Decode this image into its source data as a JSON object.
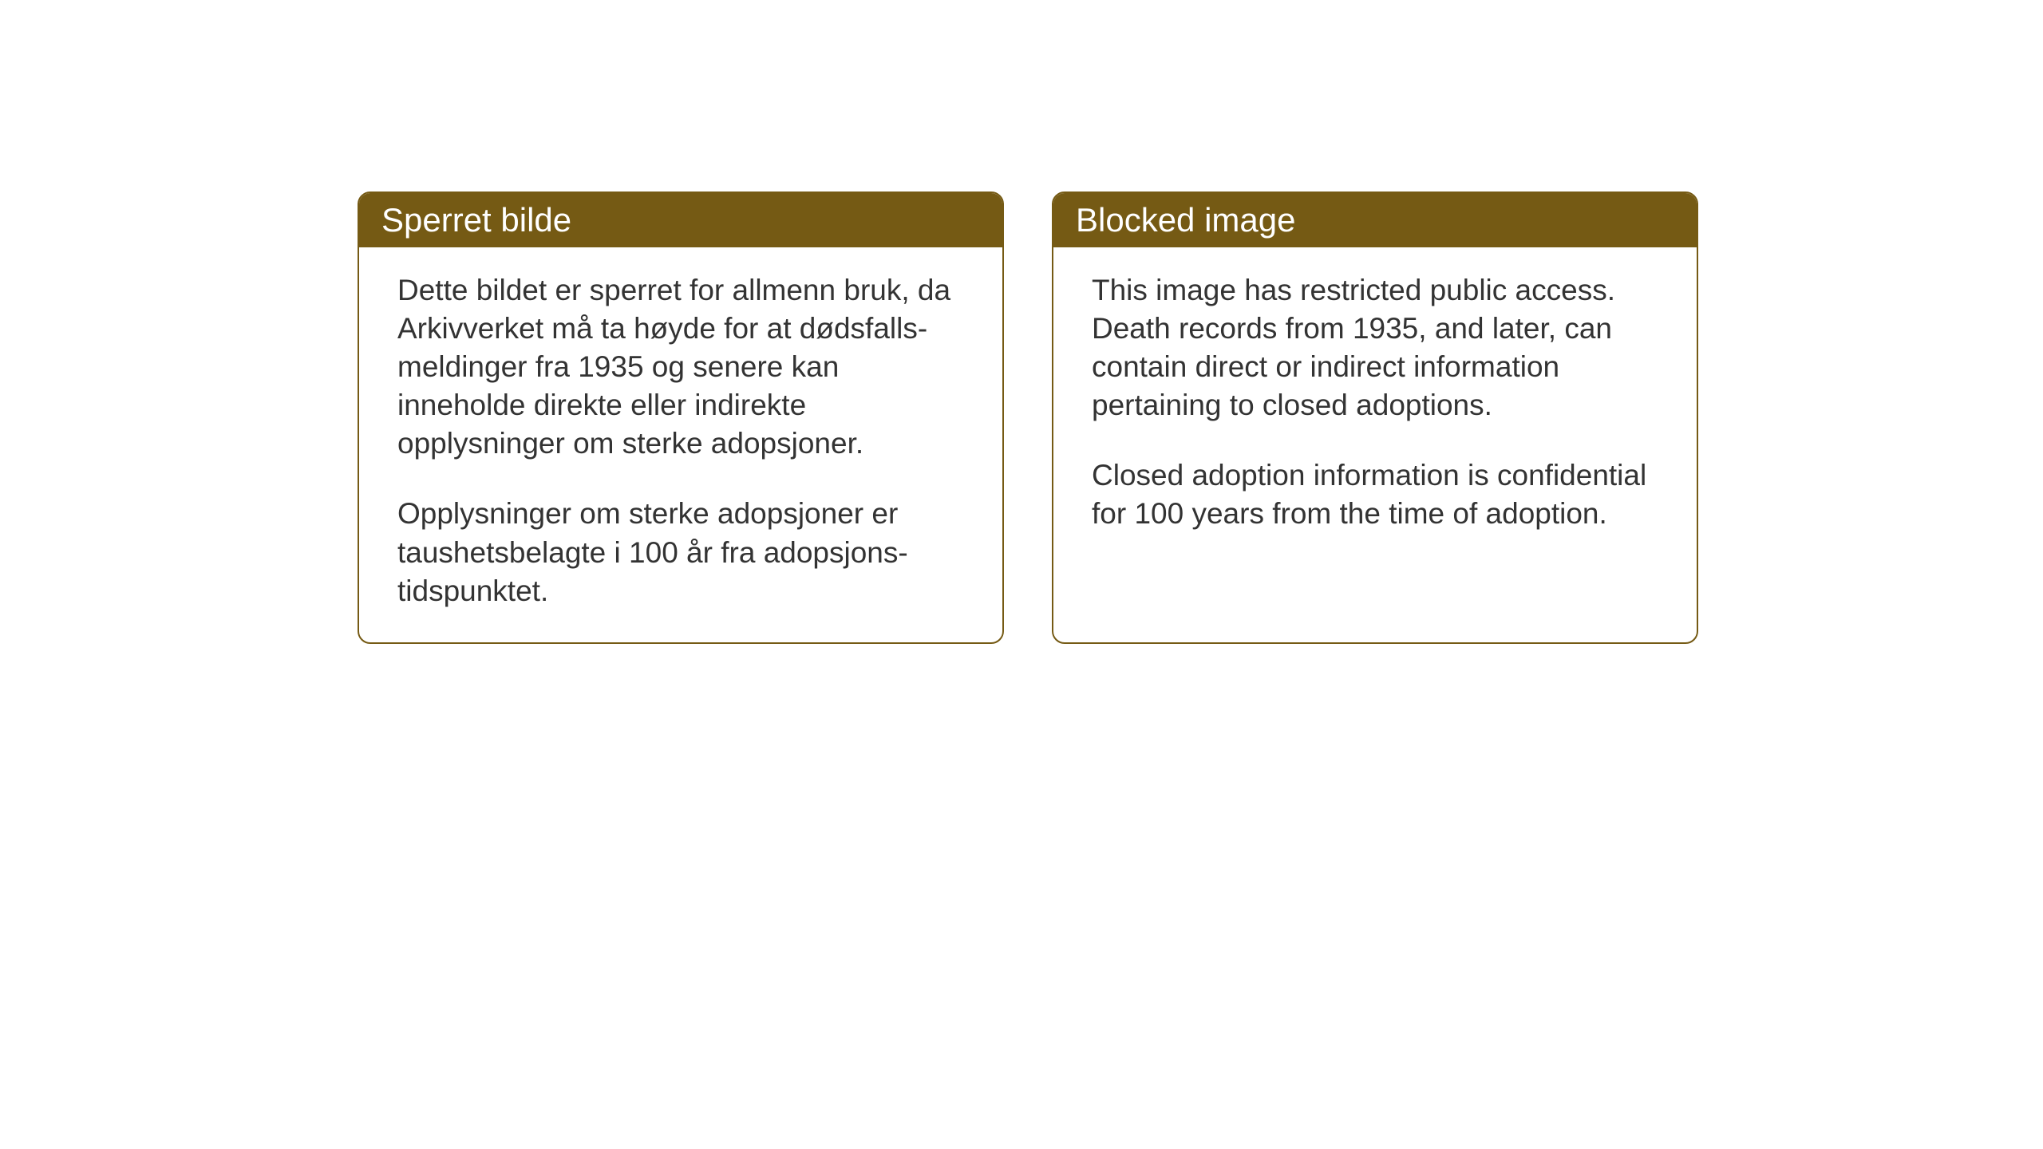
{
  "background_color": "#ffffff",
  "card_border_color": "#755a14",
  "card_header_bg": "#755a14",
  "card_header_text_color": "#ffffff",
  "card_body_text_color": "#333333",
  "header_fontsize": 42,
  "body_fontsize": 37,
  "cards": {
    "norwegian": {
      "title": "Sperret bilde",
      "paragraph1": "Dette bildet er sperret for allmenn bruk, da Arkivverket må ta høyde for at dødsfalls-meldinger fra 1935 og senere kan inneholde direkte eller indirekte opplysninger om sterke adopsjoner.",
      "paragraph2": "Opplysninger om sterke adopsjoner er taushetsbelagte i 100 år fra adopsjons-tidspunktet."
    },
    "english": {
      "title": "Blocked image",
      "paragraph1": "This image has restricted public access. Death records from 1935, and later, can contain direct or indirect information pertaining to closed adoptions.",
      "paragraph2": "Closed adoption information is confidential for 100 years from the time of adoption."
    }
  }
}
